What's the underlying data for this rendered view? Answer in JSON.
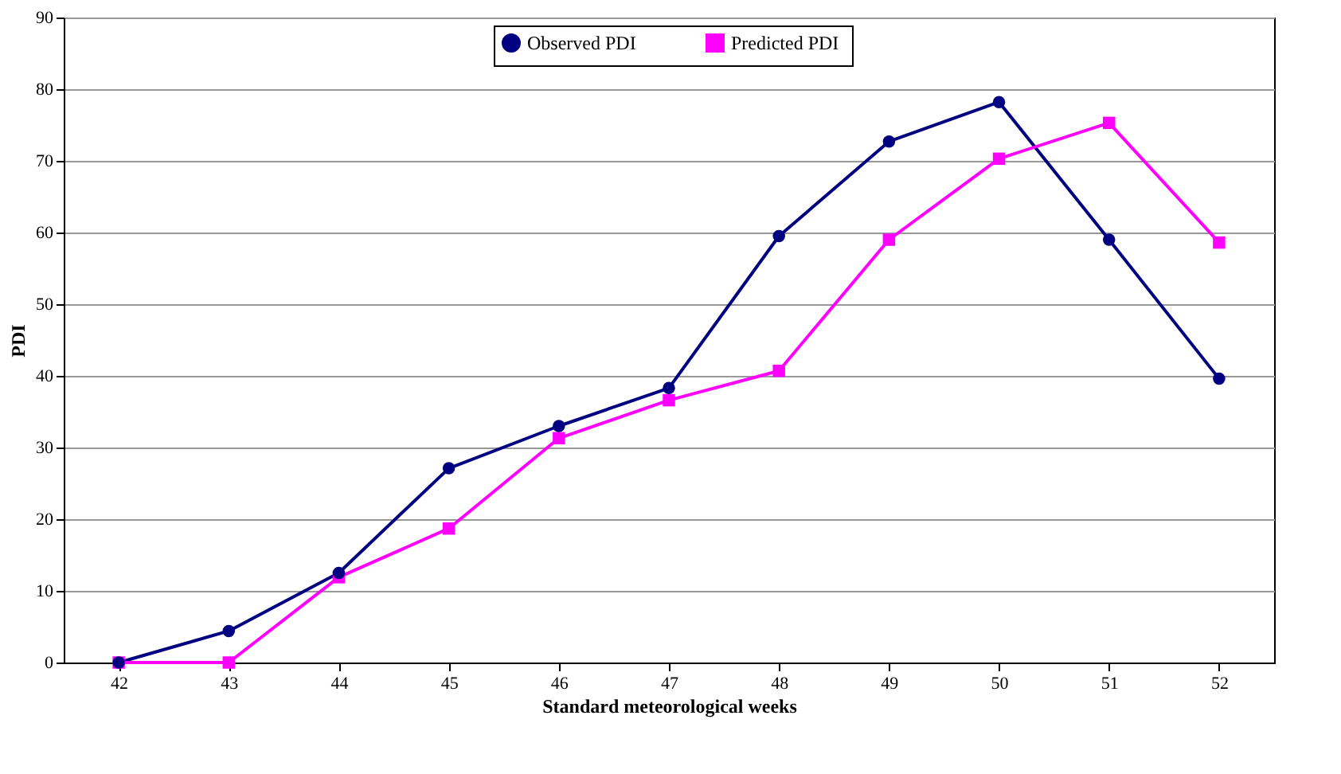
{
  "chart_data": {
    "type": "line",
    "xlabel": "Standard meteorological weeks",
    "ylabel": "PDI",
    "categories": [
      "42",
      "43",
      "44",
      "45",
      "46",
      "47",
      "48",
      "49",
      "50",
      "51",
      "52"
    ],
    "ylim": [
      0,
      90
    ],
    "yticks": [
      0,
      10,
      20,
      30,
      40,
      50,
      60,
      70,
      80,
      90
    ],
    "grid": "y",
    "legend": "top",
    "line_style": "solid",
    "series": [
      {
        "name": "Observed PDI",
        "color": "#000080",
        "marker": "circle",
        "values": [
          0,
          4.4,
          12.5,
          27.1,
          33.0,
          38.3,
          59.5,
          72.7,
          78.2,
          59.0,
          39.6
        ]
      },
      {
        "name": "Predicted  PDI",
        "color": "#ff00ff",
        "marker": "square",
        "values": [
          0,
          0,
          11.9,
          18.7,
          31.3,
          36.6,
          40.7,
          59.0,
          70.3,
          75.3,
          58.6
        ]
      }
    ]
  }
}
